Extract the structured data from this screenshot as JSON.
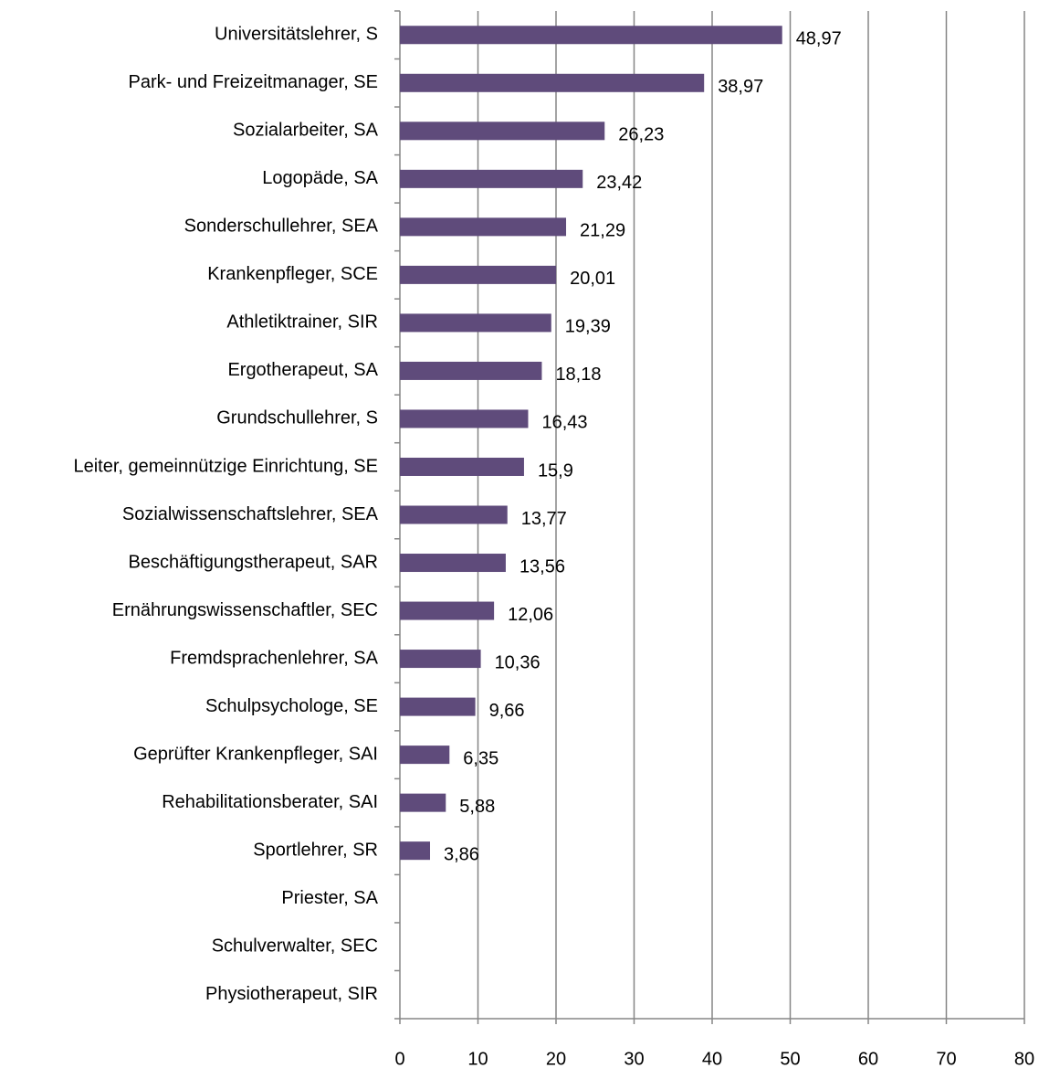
{
  "chart_data": {
    "type": "bar",
    "orientation": "horizontal",
    "categories": [
      "Universitätslehrer, S",
      "Park- und Freizeitmanager, SE",
      "Sozialarbeiter, SA",
      "Logopäde, SA",
      "Sonderschullehrer, SEA",
      "Krankenpfleger, SCE",
      "Athletiktrainer, SIR",
      "Ergotherapeut, SA",
      "Grundschullehrer, S",
      "Leiter, gemeinnützige Einrichtung, SE",
      "Sozialwissenschaftslehrer, SEA",
      "Beschäftigungstherapeut, SAR",
      "Ernährungswissenschaftler, SEC",
      "Fremdsprachenlehrer, SA",
      "Schulpsychologe, SE",
      "Geprüfter Krankenpfleger, SAI",
      "Rehabilitationsberater, SAI",
      "Sportlehrer, SR",
      "Priester, SA",
      "Schulverwalter, SEC",
      "Physiotherapeut, SIR"
    ],
    "values": [
      48.97,
      38.97,
      26.23,
      23.42,
      21.29,
      20.01,
      19.39,
      18.18,
      16.43,
      15.9,
      13.77,
      13.56,
      12.06,
      10.36,
      9.66,
      6.35,
      5.88,
      3.86,
      0,
      0,
      0
    ],
    "value_labels": [
      "48,97",
      "38,97",
      "26,23",
      "23,42",
      "21,29",
      "20,01",
      "19,39",
      "18,18",
      "16,43",
      "15,9",
      "13,77",
      "13,56",
      "12,06",
      "10,36",
      "9,66",
      "6,35",
      "5,88",
      "3,86",
      null,
      null,
      null
    ],
    "color": "#5f4b7b",
    "xlim": [
      0,
      80
    ],
    "xticks": [
      0,
      10,
      20,
      30,
      40,
      50,
      60,
      70,
      80
    ],
    "grid": true
  }
}
